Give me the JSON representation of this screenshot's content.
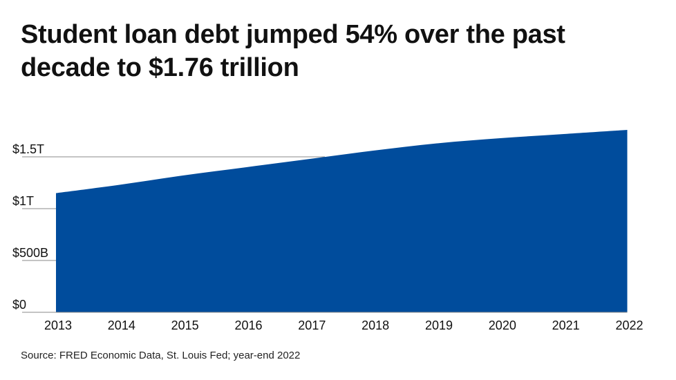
{
  "chart_data": {
    "type": "area",
    "title": "Student loan debt jumped 54% over the past decade to $1.76 trillion",
    "xlabel": "",
    "ylabel": "",
    "categories": [
      "2013",
      "2014",
      "2015",
      "2016",
      "2017",
      "2018",
      "2019",
      "2020",
      "2021",
      "2022"
    ],
    "values": [
      1.15,
      1.23,
      1.32,
      1.4,
      1.48,
      1.56,
      1.63,
      1.68,
      1.72,
      1.76
    ],
    "unit": "trillions USD",
    "ylim": [
      0,
      1.76
    ],
    "yticks": [
      {
        "value": 0,
        "label": "$0"
      },
      {
        "value": 0.5,
        "label": "$500B"
      },
      {
        "value": 1,
        "label": "$1T"
      },
      {
        "value": 1.5,
        "label": "$1.5T"
      }
    ],
    "grid": true,
    "legend": "none",
    "fill_color": "#004c9c",
    "grid_color": "#888888"
  },
  "source": "Source: FRED Economic Data, St. Louis Fed; year-end 2022"
}
